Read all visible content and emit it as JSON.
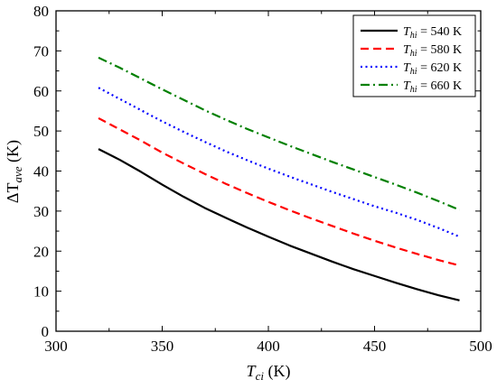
{
  "chart_data": {
    "type": "line",
    "title": "",
    "xlabel_main": "T",
    "xlabel_sub": "ci",
    "xlabel_unit": " (K)",
    "ylabel_main": "ΔT",
    "ylabel_sub": "ave",
    "ylabel_unit": " (K)",
    "xlim": [
      300,
      500
    ],
    "ylim": [
      0,
      80
    ],
    "xticks": [
      300,
      350,
      400,
      450,
      500
    ],
    "yticks": [
      0,
      10,
      20,
      30,
      40,
      50,
      60,
      70,
      80
    ],
    "grid": false,
    "legend_position": "top-right",
    "series": [
      {
        "name": "540 K",
        "legend_prefix": "T",
        "legend_sub": "hi",
        "legend_value": " = 540 K",
        "color": "#000000",
        "dash": "solid",
        "x": [
          320,
          330,
          340,
          350,
          360,
          370,
          380,
          390,
          400,
          410,
          420,
          430,
          440,
          450,
          460,
          470,
          480,
          490
        ],
        "y": [
          45.5,
          42.8,
          39.8,
          36.6,
          33.6,
          30.8,
          28.3,
          25.9,
          23.6,
          21.4,
          19.4,
          17.4,
          15.5,
          13.8,
          12.1,
          10.5,
          9.0,
          7.7
        ]
      },
      {
        "name": "580 K",
        "legend_prefix": "T",
        "legend_sub": "hi",
        "legend_value": " = 580 K",
        "color": "#ff0000",
        "dash": "dashed",
        "x": [
          320,
          330,
          340,
          350,
          360,
          370,
          380,
          390,
          400,
          410,
          420,
          430,
          440,
          450,
          460,
          470,
          480,
          490
        ],
        "y": [
          53.2,
          50.4,
          47.6,
          44.6,
          41.9,
          39.3,
          36.8,
          34.5,
          32.3,
          30.2,
          28.2,
          26.3,
          24.4,
          22.6,
          20.9,
          19.3,
          17.8,
          16.4
        ]
      },
      {
        "name": "620 K",
        "legend_prefix": "T",
        "legend_sub": "hi",
        "legend_value": " = 620 K",
        "color": "#0000ff",
        "dash": "dotted",
        "x": [
          320,
          330,
          340,
          350,
          360,
          370,
          380,
          390,
          400,
          410,
          420,
          430,
          440,
          450,
          460,
          470,
          480,
          490
        ],
        "y": [
          60.8,
          58.0,
          55.2,
          52.4,
          49.8,
          47.3,
          44.9,
          42.7,
          40.6,
          38.6,
          36.7,
          34.8,
          33.0,
          31.2,
          29.6,
          27.8,
          25.8,
          23.6
        ]
      },
      {
        "name": "660 K",
        "legend_prefix": "T",
        "legend_sub": "hi",
        "legend_value": " = 660 K",
        "color": "#008000",
        "dash": "dashdot",
        "x": [
          320,
          330,
          340,
          350,
          360,
          370,
          380,
          390,
          400,
          410,
          420,
          430,
          440,
          450,
          460,
          470,
          480,
          490
        ],
        "y": [
          68.3,
          65.8,
          63.1,
          60.4,
          57.8,
          55.2,
          52.8,
          50.5,
          48.4,
          46.3,
          44.3,
          42.3,
          40.4,
          38.5,
          36.6,
          34.6,
          32.5,
          30.3
        ]
      }
    ]
  }
}
